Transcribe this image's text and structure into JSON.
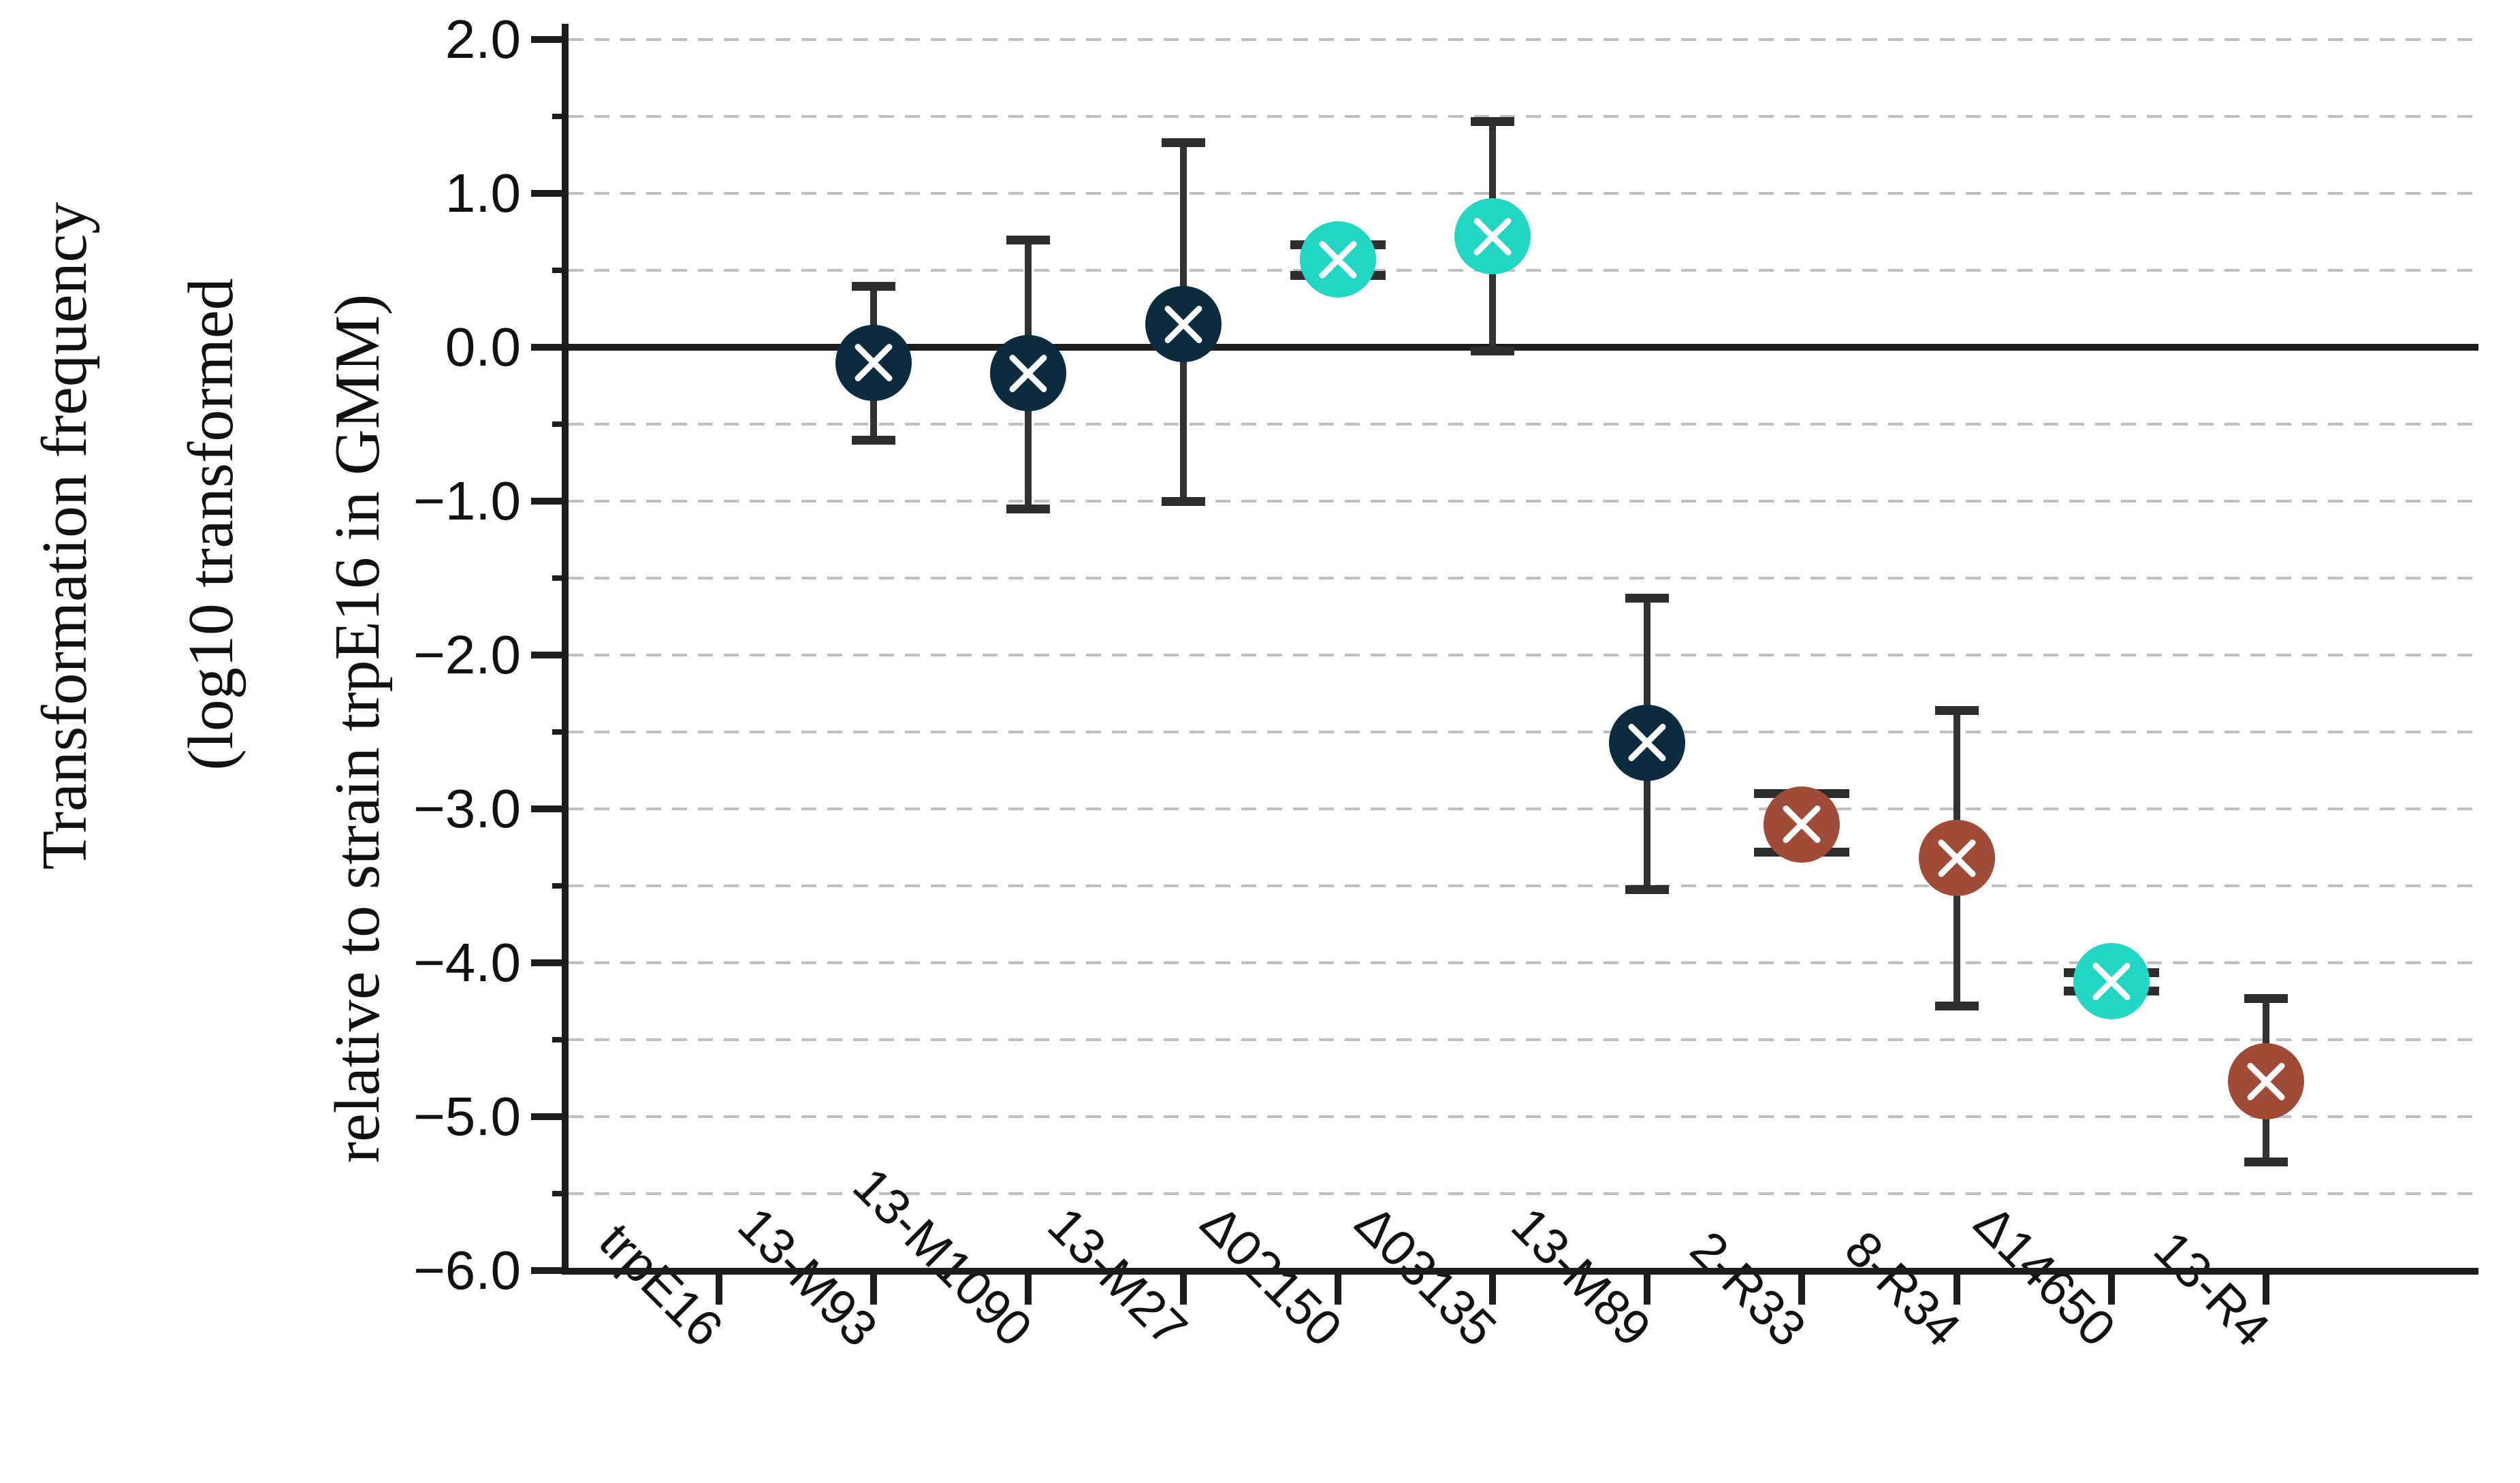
{
  "chart_data": {
    "type": "scatter",
    "title": "",
    "ylabel_lines": [
      "Transformation frequency",
      "(log10 transformed",
      "relative to strain trpE16 in GMM)"
    ],
    "marker_style": "filled circle with white X cross, vertical error bars with caps",
    "legend": "none",
    "grid": "horizontal dashed gridlines every 0.5 units; solid reference line at 0.0",
    "reference_line": 0.0,
    "y_axis": {
      "min": -6.0,
      "max": 2.0,
      "major_step": 1.0,
      "minor_step": 0.5,
      "tick_labels": [
        {
          "value": 2.0,
          "label": "2.0"
        },
        {
          "value": 1.0,
          "label": "1.0"
        },
        {
          "value": 0.0,
          "label": "0.0"
        },
        {
          "value": -1.0,
          "label": "−1.0"
        },
        {
          "value": -2.0,
          "label": "−2.0"
        },
        {
          "value": -3.0,
          "label": "−3.0"
        },
        {
          "value": -4.0,
          "label": "−4.0"
        },
        {
          "value": -5.0,
          "label": "−5.0"
        },
        {
          "value": -6.0,
          "label": "−6.0"
        }
      ]
    },
    "categories": [
      "trpE16",
      "13-M93",
      "13-M1090",
      "13-M27",
      "Δ02150",
      "Δ03135",
      "13-M89",
      "2-R33",
      "8-R34",
      "Δ14650",
      "13-R4"
    ],
    "points": [
      {
        "label": "trpE16",
        "value": null,
        "ci_low": null,
        "ci_high": null,
        "color_key": null,
        "note": "reference strain, no marker plotted"
      },
      {
        "label": "13-M93",
        "value": -0.1,
        "ci_low": -0.6,
        "ci_high": 0.4,
        "color_key": "navy"
      },
      {
        "label": "13-M1090",
        "value": -0.17,
        "ci_low": -1.05,
        "ci_high": 0.7,
        "color_key": "navy"
      },
      {
        "label": "13-M27",
        "value": 0.15,
        "ci_low": -1.0,
        "ci_high": 1.33,
        "color_key": "navy"
      },
      {
        "label": "Δ02150",
        "value": 0.57,
        "ci_low": 0.47,
        "ci_high": 0.67,
        "color_key": "teal"
      },
      {
        "label": "Δ03135",
        "value": 0.72,
        "ci_low": -0.02,
        "ci_high": 1.47,
        "color_key": "teal"
      },
      {
        "label": "13-M89",
        "value": -2.57,
        "ci_low": -3.52,
        "ci_high": -1.63,
        "color_key": "navy"
      },
      {
        "label": "2-R33",
        "value": -3.1,
        "ci_low": -3.28,
        "ci_high": -2.9,
        "color_key": "rust"
      },
      {
        "label": "8-R34",
        "value": -3.32,
        "ci_low": -4.28,
        "ci_high": -2.36,
        "color_key": "rust"
      },
      {
        "label": "Δ14650",
        "value": -4.12,
        "ci_low": -4.18,
        "ci_high": -4.06,
        "color_key": "teal"
      },
      {
        "label": "13-R4",
        "value": -4.77,
        "ci_low": -5.29,
        "ci_high": -4.23,
        "color_key": "rust"
      }
    ],
    "colors": {
      "navy": "#0d2b3c",
      "teal": "#22d7c2",
      "rust": "#a04a38",
      "error_bar": "#323232",
      "grid": "#bfbfbf",
      "axis": "#1c1c1c"
    }
  }
}
